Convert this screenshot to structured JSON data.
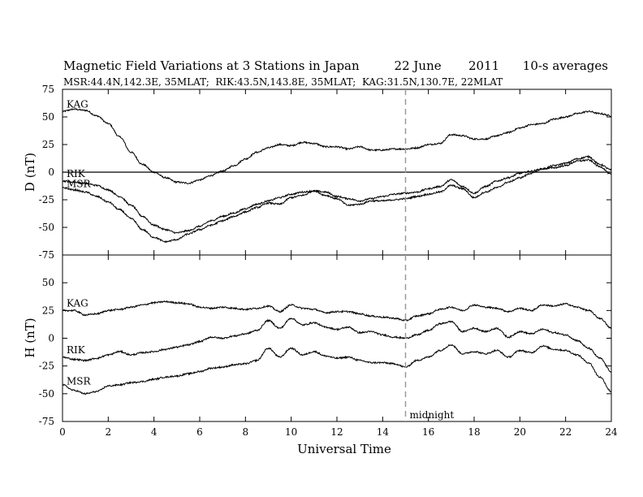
{
  "chart_data": [
    {
      "panel": "top",
      "type": "line",
      "title": "Magnetic Field Variations at 3 Stations in Japan         22 June       2011      10-s averages",
      "subtitle": "MSR:44.4N,142.3E, 35MLAT;  RIK:43.5N,143.8E, 35MLAT;  KAG:31.5N,130.7E, 22MLAT",
      "ylabel": "D (nT)",
      "xlim": [
        0,
        24
      ],
      "ylim": [
        -75,
        75
      ],
      "yticks": [
        "75",
        "50",
        "25",
        "0",
        "-25",
        "-50",
        "-75"
      ],
      "zero_line": true,
      "x": [
        0,
        0.5,
        1,
        1.5,
        2,
        2.5,
        3,
        3.5,
        4,
        4.5,
        5,
        5.5,
        6,
        6.5,
        7,
        7.5,
        8,
        8.5,
        9,
        9.5,
        10,
        10.5,
        11,
        11.5,
        12,
        12.5,
        13,
        13.5,
        14,
        14.5,
        15,
        15.5,
        16,
        16.5,
        17,
        17.5,
        18,
        18.5,
        19,
        19.5,
        20,
        20.5,
        21,
        21.5,
        22,
        22.5,
        23,
        23.5,
        24
      ],
      "series": [
        {
          "name": "KAG",
          "values": [
            55,
            57,
            56,
            51,
            44,
            32,
            18,
            7,
            0,
            -5,
            -9,
            -10,
            -7,
            -3,
            1,
            6,
            12,
            18,
            22,
            25,
            24,
            27,
            26,
            23,
            23,
            21,
            23,
            20,
            20,
            21,
            21,
            22,
            25,
            26,
            34,
            33,
            30,
            30,
            33,
            36,
            40,
            43,
            44,
            48,
            50,
            53,
            55,
            53,
            51
          ]
        },
        {
          "name": "RIK",
          "values": [
            -8,
            -9,
            -10,
            -12,
            -16,
            -22,
            -30,
            -40,
            -48,
            -52,
            -55,
            -53,
            -49,
            -44,
            -40,
            -37,
            -33,
            -29,
            -26,
            -23,
            -20,
            -18,
            -17,
            -18,
            -22,
            -24,
            -26,
            -24,
            -22,
            -20,
            -19,
            -18,
            -15,
            -13,
            -7,
            -13,
            -19,
            -13,
            -8,
            -5,
            -1,
            1,
            3,
            6,
            8,
            12,
            14,
            7,
            2
          ]
        },
        {
          "name": "MSR",
          "values": [
            -14,
            -16,
            -18,
            -22,
            -27,
            -34,
            -42,
            -52,
            -59,
            -63,
            -61,
            -56,
            -52,
            -48,
            -44,
            -40,
            -36,
            -32,
            -28,
            -29,
            -23,
            -21,
            -17,
            -21,
            -24,
            -30,
            -29,
            -26,
            -26,
            -25,
            -24,
            -22,
            -20,
            -18,
            -12,
            -15,
            -23,
            -18,
            -14,
            -9,
            -5,
            -1,
            3,
            4,
            6,
            10,
            11,
            5,
            -2
          ]
        }
      ]
    },
    {
      "panel": "bottom",
      "type": "line",
      "ylabel": "H (nT)",
      "xlabel": "Universal Time",
      "xlim": [
        0,
        24
      ],
      "ylim": [
        -75,
        75
      ],
      "yticks": [
        "75",
        "50",
        "25",
        "0",
        "-25",
        "-50",
        "-75"
      ],
      "xticks": [
        "0",
        "2",
        "4",
        "6",
        "8",
        "10",
        "12",
        "14",
        "16",
        "18",
        "20",
        "22",
        "24"
      ],
      "vline": {
        "x": 15,
        "label": "midnight"
      },
      "x": [
        0,
        0.5,
        1,
        1.5,
        2,
        2.5,
        3,
        3.5,
        4,
        4.5,
        5,
        5.5,
        6,
        6.5,
        7,
        7.5,
        8,
        8.5,
        9,
        9.5,
        10,
        10.5,
        11,
        11.5,
        12,
        12.5,
        13,
        13.5,
        14,
        14.5,
        15,
        15.5,
        16,
        16.5,
        17,
        17.5,
        18,
        18.5,
        19,
        19.5,
        20,
        20.5,
        21,
        21.5,
        22,
        22.5,
        23,
        23.5,
        24
      ],
      "series": [
        {
          "name": "KAG",
          "values": [
            25,
            25,
            21,
            22,
            25,
            26,
            28,
            30,
            32,
            33,
            32,
            31,
            28,
            27,
            28,
            27,
            26,
            27,
            29,
            24,
            30,
            27,
            26,
            23,
            24,
            24,
            22,
            20,
            19,
            18,
            16,
            20,
            22,
            26,
            28,
            25,
            30,
            28,
            27,
            24,
            27,
            25,
            30,
            29,
            31,
            28,
            25,
            18,
            9
          ]
        },
        {
          "name": "RIK",
          "values": [
            -17,
            -19,
            -20,
            -18,
            -15,
            -12,
            -15,
            -13,
            -12,
            -10,
            -8,
            -6,
            -3,
            1,
            0,
            2,
            4,
            7,
            16,
            9,
            18,
            12,
            14,
            10,
            8,
            10,
            5,
            6,
            3,
            1,
            0,
            3,
            7,
            13,
            15,
            6,
            9,
            6,
            9,
            1,
            6,
            4,
            8,
            5,
            3,
            -2,
            -9,
            -18,
            -30
          ]
        },
        {
          "name": "MSR",
          "values": [
            -42,
            -47,
            -50,
            -48,
            -43,
            -42,
            -40,
            -39,
            -37,
            -35,
            -34,
            -32,
            -30,
            -27,
            -26,
            -24,
            -23,
            -20,
            -9,
            -17,
            -9,
            -15,
            -12,
            -16,
            -18,
            -17,
            -20,
            -22,
            -22,
            -23,
            -26,
            -20,
            -17,
            -11,
            -6,
            -14,
            -12,
            -14,
            -11,
            -17,
            -11,
            -13,
            -7,
            -10,
            -11,
            -15,
            -22,
            -35,
            -48
          ]
        }
      ]
    }
  ]
}
